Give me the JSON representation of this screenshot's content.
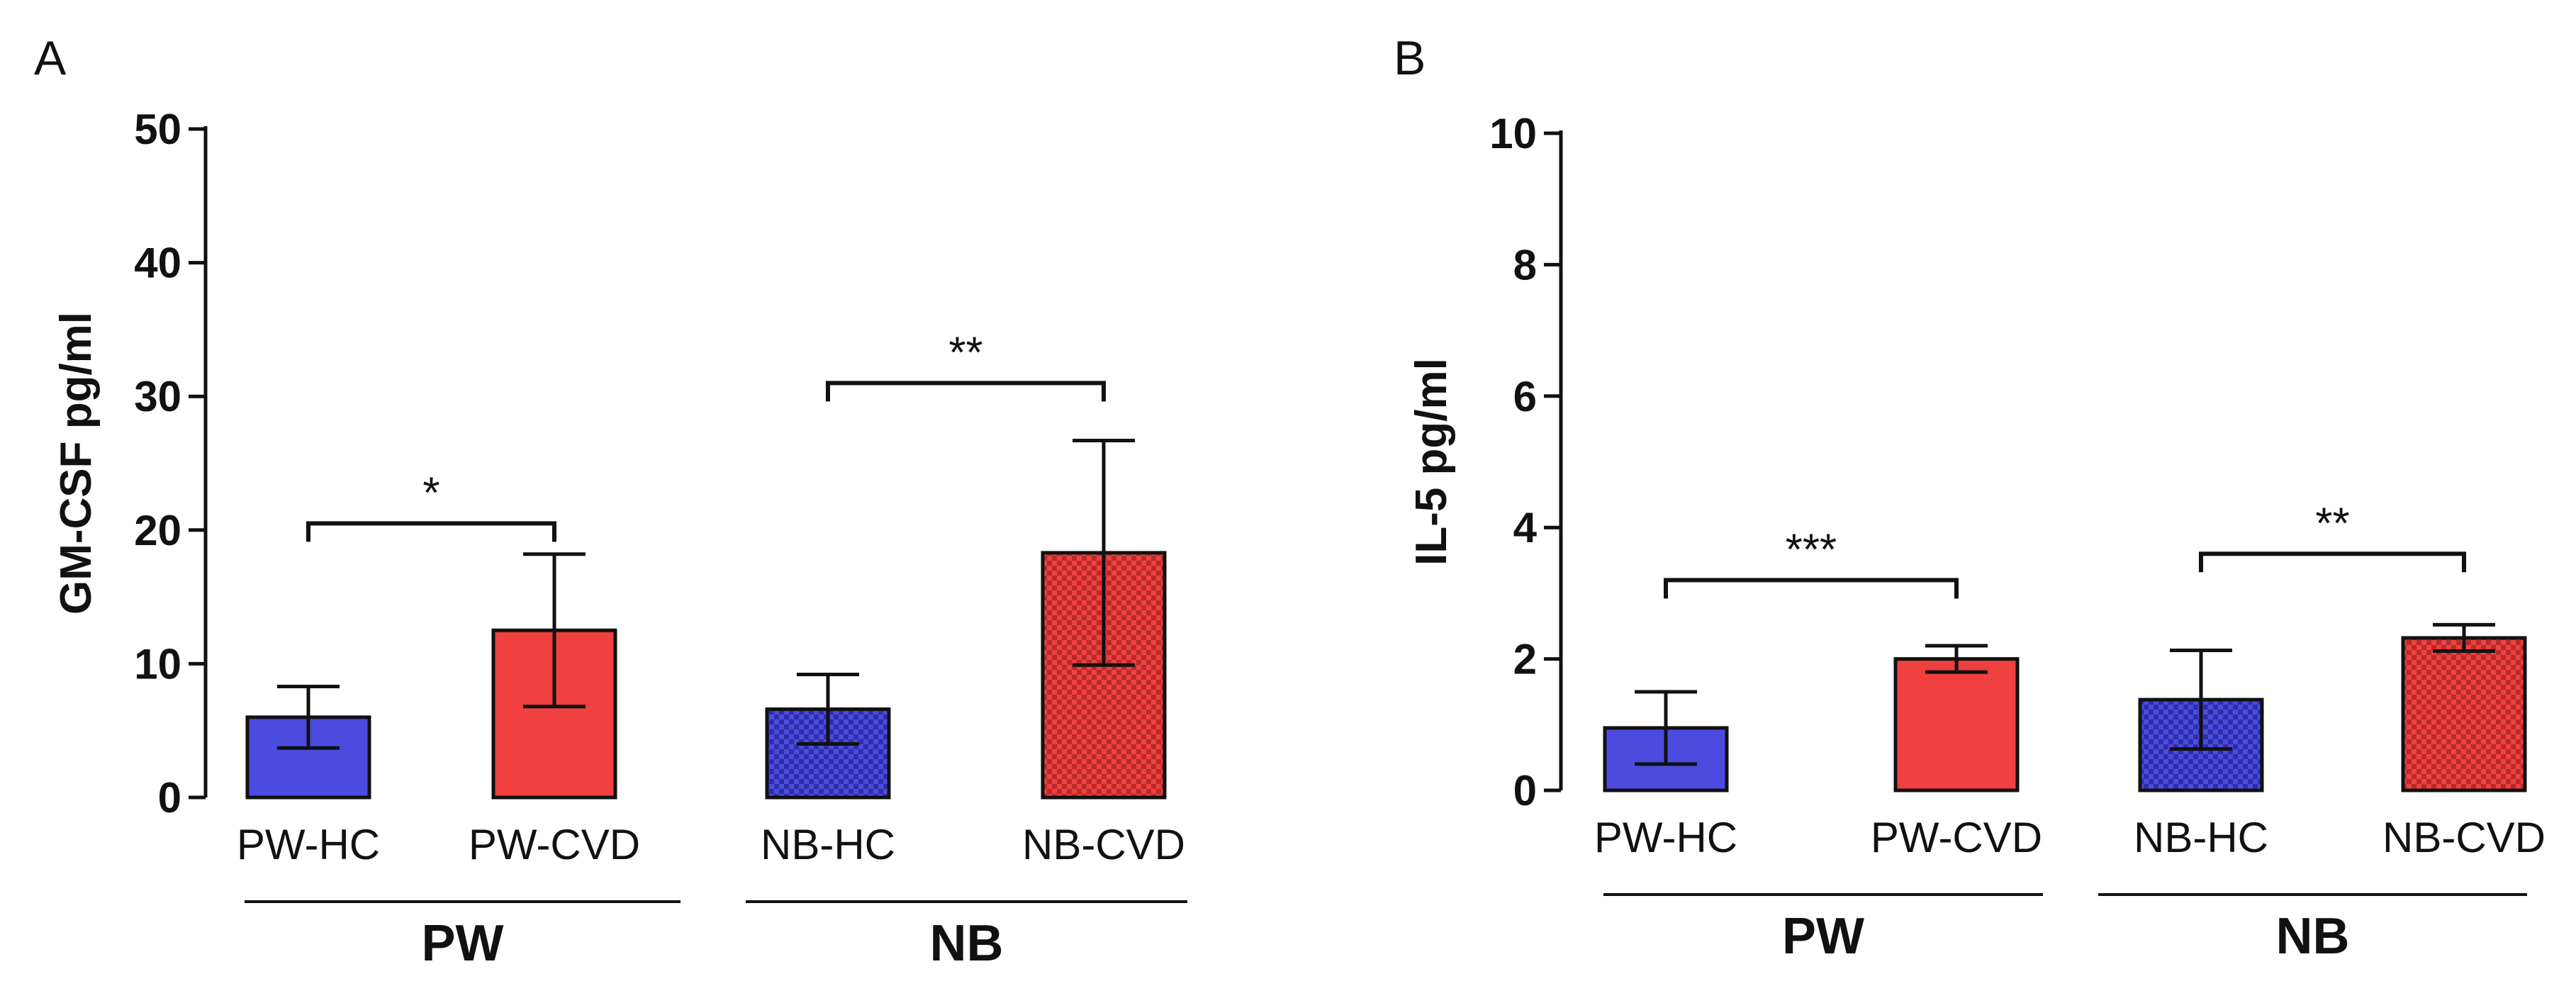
{
  "chart_data": [
    {
      "panel": "A",
      "type": "bar",
      "ylabel": "GM-CSF pg/ml",
      "ylim": [
        0,
        50
      ],
      "yticks": [
        0,
        10,
        20,
        30,
        40,
        50
      ],
      "categories": [
        "PW-HC",
        "PW-CVD",
        "NB-HC",
        "NB-CVD"
      ],
      "values": [
        6.0,
        12.5,
        6.6,
        18.3
      ],
      "errors": [
        2.3,
        5.7,
        2.6,
        8.4
      ],
      "colors": [
        "#4B4BE0",
        "#F04040",
        "#4B4BE0",
        "#F04040"
      ],
      "patterned": [
        false,
        false,
        true,
        true
      ],
      "groups": [
        {
          "label": "PW",
          "span": [
            0,
            1
          ]
        },
        {
          "label": "NB",
          "span": [
            2,
            3
          ]
        }
      ],
      "significance": [
        {
          "from": 0,
          "to": 1,
          "label": "*",
          "y": 20.5
        },
        {
          "from": 2,
          "to": 3,
          "label": "**",
          "y": 31
        }
      ]
    },
    {
      "panel": "B",
      "type": "bar",
      "ylabel": "IL-5 pg/ml",
      "ylim": [
        0,
        10
      ],
      "yticks": [
        0,
        2,
        4,
        6,
        8,
        10
      ],
      "categories": [
        "PW-HC",
        "PW-CVD",
        "NB-HC",
        "NB-CVD"
      ],
      "values": [
        0.95,
        2.0,
        1.38,
        2.32
      ],
      "errors": [
        0.55,
        0.2,
        0.75,
        0.2
      ],
      "colors": [
        "#4B4BE0",
        "#F04040",
        "#4B4BE0",
        "#F04040"
      ],
      "patterned": [
        false,
        false,
        true,
        true
      ],
      "groups": [
        {
          "label": "PW",
          "span": [
            0,
            1
          ]
        },
        {
          "label": "NB",
          "span": [
            2,
            3
          ]
        }
      ],
      "significance": [
        {
          "from": 0,
          "to": 1,
          "label": "***",
          "y": 3.2
        },
        {
          "from": 2,
          "to": 3,
          "label": "**",
          "y": 3.6
        }
      ]
    }
  ]
}
